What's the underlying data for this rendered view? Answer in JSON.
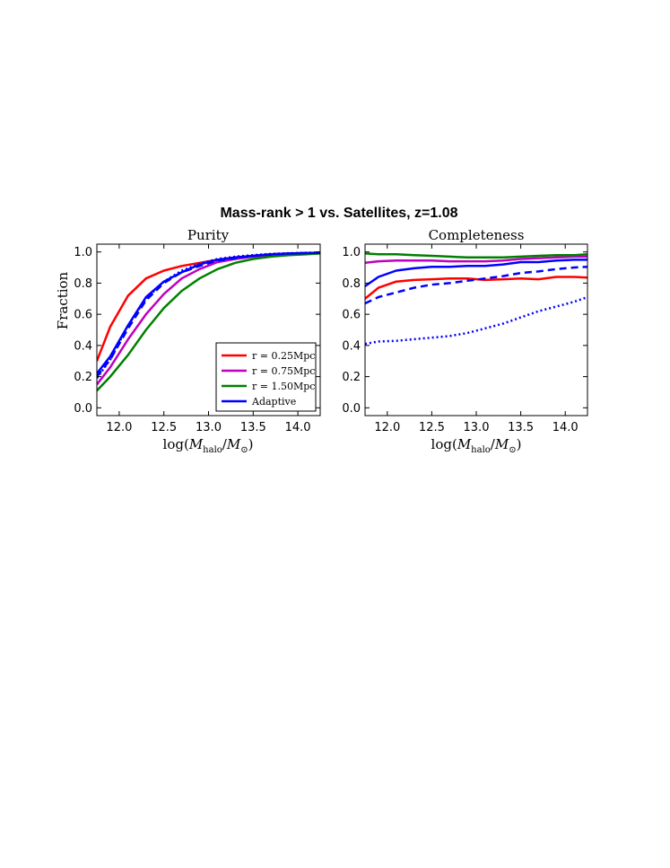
{
  "figure": {
    "suptitle": "Mass-rank > 1 vs. Satellites, z=1.08"
  },
  "legend": {
    "placement": "lower-right",
    "items": [
      {
        "label": "r = 0.25Mpc",
        "color": "#ff0000"
      },
      {
        "label": "r = 0.75Mpc",
        "color": "#bf00bf"
      },
      {
        "label": "r = 1.50Mpc",
        "color": "#008000"
      },
      {
        "label": "Adaptive",
        "color": "#0000ff"
      }
    ]
  },
  "chart_data": [
    {
      "type": "line",
      "title": "Purity",
      "xlabel": "log(M_halo/M_⊙)",
      "ylabel": "Fraction",
      "xlim": [
        11.75,
        14.25
      ],
      "ylim": [
        -0.05,
        1.05
      ],
      "xticks": [
        "12.0",
        "12.5",
        "13.0",
        "13.5",
        "14.0"
      ],
      "yticks": [
        "0.0",
        "0.2",
        "0.4",
        "0.6",
        "0.8",
        "1.0"
      ],
      "x": [
        11.75,
        11.9,
        12.1,
        12.3,
        12.5,
        12.7,
        12.9,
        13.1,
        13.3,
        13.5,
        13.7,
        13.9,
        14.1,
        14.25
      ],
      "series": [
        {
          "color": "#ff0000",
          "style": "solid",
          "values": [
            0.3,
            0.52,
            0.72,
            0.83,
            0.88,
            0.91,
            0.93,
            0.95,
            0.965,
            0.975,
            0.985,
            0.99,
            0.993,
            0.995
          ]
        },
        {
          "color": "#bf00bf",
          "style": "solid",
          "values": [
            0.15,
            0.26,
            0.44,
            0.6,
            0.73,
            0.83,
            0.89,
            0.935,
            0.955,
            0.97,
            0.98,
            0.985,
            0.99,
            0.993
          ]
        },
        {
          "color": "#008000",
          "style": "solid",
          "values": [
            0.11,
            0.2,
            0.34,
            0.5,
            0.64,
            0.75,
            0.83,
            0.89,
            0.93,
            0.955,
            0.97,
            0.98,
            0.985,
            0.99
          ]
        },
        {
          "color": "#0000ff",
          "style": "solid",
          "values": [
            0.22,
            0.33,
            0.53,
            0.71,
            0.81,
            0.87,
            0.92,
            0.95,
            0.965,
            0.975,
            0.985,
            0.99,
            0.993,
            0.995
          ]
        },
        {
          "color": "#0000ff",
          "style": "dashed",
          "values": [
            0.2,
            0.31,
            0.51,
            0.69,
            0.8,
            0.87,
            0.91,
            0.945,
            0.96,
            0.975,
            0.983,
            0.99,
            0.993,
            0.995
          ]
        },
        {
          "color": "#0000ff",
          "style": "dotted",
          "values": [
            0.19,
            0.31,
            0.53,
            0.7,
            0.81,
            0.88,
            0.925,
            0.955,
            0.97,
            0.98,
            0.988,
            0.992,
            0.995,
            0.997
          ]
        }
      ]
    },
    {
      "type": "line",
      "title": "Completeness",
      "xlabel": "log(M_halo/M_⊙)",
      "ylabel": "",
      "xlim": [
        11.75,
        14.25
      ],
      "ylim": [
        -0.05,
        1.05
      ],
      "xticks": [
        "12.0",
        "12.5",
        "13.0",
        "13.5",
        "14.0"
      ],
      "yticks": [
        "0.0",
        "0.2",
        "0.4",
        "0.6",
        "0.8",
        "1.0"
      ],
      "x": [
        11.75,
        11.9,
        12.1,
        12.3,
        12.5,
        12.7,
        12.9,
        13.1,
        13.3,
        13.5,
        13.7,
        13.9,
        14.1,
        14.25
      ],
      "series": [
        {
          "color": "#ff0000",
          "style": "solid",
          "values": [
            0.7,
            0.77,
            0.81,
            0.82,
            0.825,
            0.83,
            0.83,
            0.82,
            0.825,
            0.83,
            0.825,
            0.84,
            0.84,
            0.835
          ]
        },
        {
          "color": "#bf00bf",
          "style": "solid",
          "values": [
            0.93,
            0.94,
            0.945,
            0.945,
            0.945,
            0.94,
            0.94,
            0.94,
            0.945,
            0.955,
            0.96,
            0.965,
            0.97,
            0.97
          ]
        },
        {
          "color": "#008000",
          "style": "solid",
          "values": [
            0.99,
            0.985,
            0.985,
            0.98,
            0.975,
            0.97,
            0.965,
            0.965,
            0.965,
            0.97,
            0.975,
            0.98,
            0.98,
            0.985
          ]
        },
        {
          "color": "#0000ff",
          "style": "solid",
          "values": [
            0.78,
            0.84,
            0.88,
            0.895,
            0.905,
            0.905,
            0.91,
            0.91,
            0.92,
            0.935,
            0.935,
            0.945,
            0.95,
            0.95
          ]
        },
        {
          "color": "#0000ff",
          "style": "dashed",
          "values": [
            0.67,
            0.71,
            0.74,
            0.77,
            0.79,
            0.8,
            0.815,
            0.83,
            0.845,
            0.865,
            0.875,
            0.89,
            0.9,
            0.905
          ]
        },
        {
          "color": "#0000ff",
          "style": "dotted",
          "values": [
            0.41,
            0.425,
            0.43,
            0.44,
            0.45,
            0.46,
            0.48,
            0.51,
            0.54,
            0.58,
            0.62,
            0.65,
            0.68,
            0.71
          ]
        }
      ]
    }
  ]
}
